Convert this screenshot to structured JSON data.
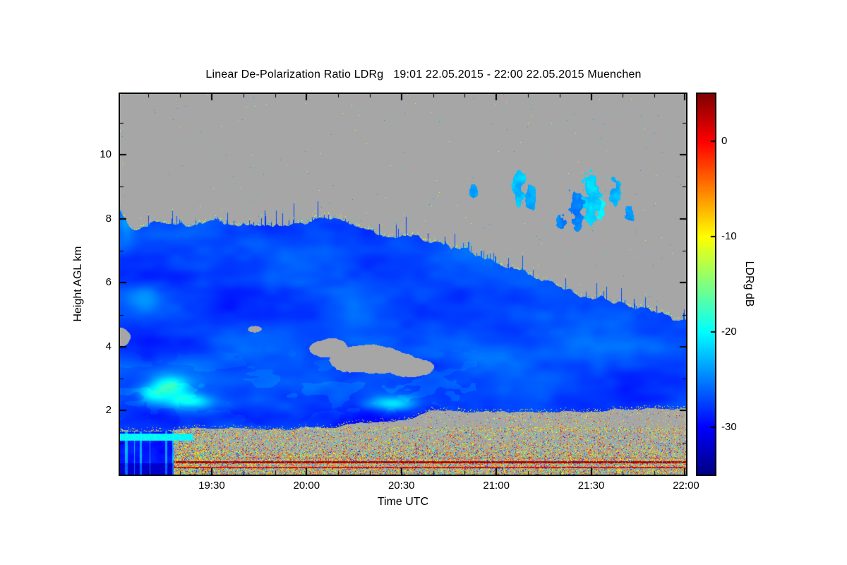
{
  "figure": {
    "background": "#ffffff"
  },
  "chart_data": {
    "type": "heatmap",
    "title": "Linear De-Polarization Ratio LDRg   19:01 22.05.2015 - 22:00 22.05.2015 Muenchen",
    "xlabel": "Time UTC",
    "ylabel": "Height AGL km",
    "colorbar_label": "LDRg dB",
    "station": "Muenchen",
    "time_start": "19:01 22.05.2015",
    "time_end": "22:00 22.05.2015",
    "x_range_hours_utc": [
      19.0167,
      22.0
    ],
    "y_range_km": [
      0,
      11.9
    ],
    "value_range_db": [
      -35,
      5
    ],
    "x_ticks": [
      {
        "hour": 19.5,
        "label": "19:30"
      },
      {
        "hour": 20.0,
        "label": "20:00"
      },
      {
        "hour": 20.5,
        "label": "20:30"
      },
      {
        "hour": 21.0,
        "label": "21:00"
      },
      {
        "hour": 21.5,
        "label": "21:30"
      },
      {
        "hour": 22.0,
        "label": "22:00"
      }
    ],
    "x_minor_step_hours": 0.1666667,
    "y_ticks": [
      {
        "km": 2,
        "label": "2"
      },
      {
        "km": 4,
        "label": "4"
      },
      {
        "km": 6,
        "label": "6"
      },
      {
        "km": 8,
        "label": "8"
      },
      {
        "km": 10,
        "label": "10"
      }
    ],
    "colorbar_ticks": [
      {
        "db": 0,
        "label": "0"
      },
      {
        "db": -10,
        "label": "-10"
      },
      {
        "db": -20,
        "label": "-20"
      },
      {
        "db": -30,
        "label": "-30"
      }
    ],
    "colormap": "jet",
    "no_data_color": "#a6a6a6",
    "grid": false,
    "legend_position": "right-colorbar",
    "features": {
      "cloud_top_km": [
        [
          19.0167,
          8.25
        ],
        [
          19.08,
          7.7
        ],
        [
          19.2,
          7.9
        ],
        [
          19.35,
          7.75
        ],
        [
          19.5,
          7.85
        ],
        [
          19.7,
          7.8
        ],
        [
          19.9,
          7.75
        ],
        [
          20.1,
          8.0
        ],
        [
          20.25,
          7.85
        ],
        [
          20.4,
          7.55
        ],
        [
          20.55,
          7.45
        ],
        [
          20.7,
          7.25
        ],
        [
          20.85,
          7.0
        ],
        [
          21.0,
          6.55
        ],
        [
          21.15,
          6.3
        ],
        [
          21.3,
          5.95
        ],
        [
          21.45,
          5.6
        ],
        [
          21.6,
          5.35
        ],
        [
          21.75,
          5.15
        ],
        [
          21.9,
          4.95
        ],
        [
          22.0,
          4.8
        ]
      ],
      "cloud_base_km": [
        [
          19.0167,
          1.35
        ],
        [
          19.5,
          1.4
        ],
        [
          19.9,
          1.45
        ],
        [
          20.3,
          1.55
        ],
        [
          20.55,
          1.7
        ],
        [
          20.65,
          2.0
        ],
        [
          21.0,
          2.0
        ],
        [
          21.3,
          1.95
        ],
        [
          21.6,
          2.0
        ],
        [
          21.8,
          2.1
        ],
        [
          22.0,
          2.05
        ]
      ],
      "cloud_mean_db": -27,
      "holes": [
        {
          "hour": 20.33,
          "km": 3.6,
          "rx_h": 0.22,
          "ry_km": 0.45
        },
        {
          "hour": 20.12,
          "km": 3.95,
          "rx_h": 0.1,
          "ry_km": 0.3
        },
        {
          "hour": 20.55,
          "km": 3.35,
          "rx_h": 0.12,
          "ry_km": 0.3
        },
        {
          "hour": 19.73,
          "km": 4.55,
          "rx_h": 0.035,
          "ry_km": 0.1
        },
        {
          "hour": 19.02,
          "km": 4.3,
          "rx_h": 0.05,
          "ry_km": 0.3
        }
      ],
      "bright_patches_db": [
        {
          "hour": 19.28,
          "km": 2.75,
          "rx_h": 0.1,
          "ry_km": 0.35,
          "ddb": 7
        },
        {
          "hour": 19.38,
          "km": 2.3,
          "rx_h": 0.12,
          "ry_km": 0.25,
          "ddb": 8
        },
        {
          "hour": 19.18,
          "km": 2.5,
          "rx_h": 0.07,
          "ry_km": 0.3,
          "ddb": 5
        },
        {
          "hour": 20.45,
          "km": 2.2,
          "rx_h": 0.13,
          "ry_km": 0.22,
          "ddb": 7
        },
        {
          "hour": 19.15,
          "km": 5.5,
          "rx_h": 0.1,
          "ry_km": 0.45,
          "ddb": 3
        },
        {
          "hour": 19.05,
          "km": 7.9,
          "rx_h": 0.05,
          "ry_km": 0.55,
          "ddb": 4
        }
      ],
      "upper_clouds": [
        {
          "hour": 21.12,
          "km": 9.0,
          "rx_h": 0.035,
          "ry_km": 0.55,
          "db": -23
        },
        {
          "hour": 21.18,
          "km": 8.6,
          "rx_h": 0.03,
          "ry_km": 0.45,
          "db": -24
        },
        {
          "hour": 21.42,
          "km": 8.3,
          "rx_h": 0.05,
          "ry_km": 0.8,
          "db": -25
        },
        {
          "hour": 21.5,
          "km": 8.6,
          "rx_h": 0.07,
          "ry_km": 0.9,
          "db": -22
        },
        {
          "hour": 21.55,
          "km": 8.3,
          "rx_h": 0.04,
          "ry_km": 0.5,
          "db": -20
        },
        {
          "hour": 21.62,
          "km": 8.9,
          "rx_h": 0.04,
          "ry_km": 0.6,
          "db": -23
        },
        {
          "hour": 21.35,
          "km": 7.9,
          "rx_h": 0.035,
          "ry_km": 0.3,
          "db": -25
        },
        {
          "hour": 20.88,
          "km": 8.85,
          "rx_h": 0.025,
          "ry_km": 0.25,
          "db": -24
        },
        {
          "hour": 21.7,
          "km": 8.1,
          "rx_h": 0.03,
          "ry_km": 0.35,
          "db": -24
        }
      ],
      "left_block": {
        "hour_end": 19.3,
        "km_top": 1.35,
        "db": -29,
        "dark_bottom_km": 0.35,
        "dark_db": -33
      },
      "cyan_strip": {
        "hour_end": 19.4,
        "km_bottom": 1.05,
        "km_top": 1.28,
        "db": -20
      },
      "surface_band": {
        "km_top": 1.35,
        "line_km": [
          0.38,
          0.22
        ],
        "line_db": [
          3,
          1
        ]
      },
      "right_wedge_speckle_density": 0.05
    }
  }
}
